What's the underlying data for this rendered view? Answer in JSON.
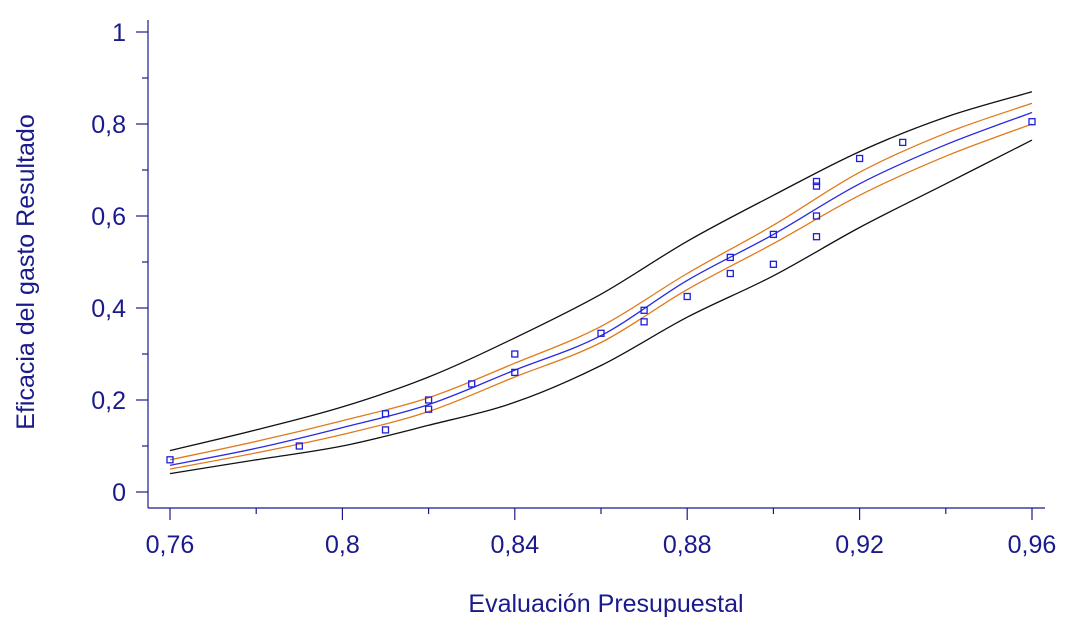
{
  "chart_data": {
    "type": "scatter",
    "title": "",
    "xlabel": "Evaluación Presupuestal",
    "ylabel": "Eficacia del gasto Resultado",
    "xlim": [
      0.76,
      0.96
    ],
    "ylim": [
      0,
      1
    ],
    "grid": false,
    "colors": {
      "axis": "#1a1a8c",
      "text": "#1a1a8c",
      "points": "#1f1fd6",
      "fit": "#2a2ae0",
      "confidence": "#e07a1a",
      "prediction": "#111111"
    },
    "x_ticks": [
      {
        "value": 0.76,
        "label": "0,76"
      },
      {
        "value": 0.8,
        "label": "0,8"
      },
      {
        "value": 0.84,
        "label": "0,84"
      },
      {
        "value": 0.88,
        "label": "0,88"
      },
      {
        "value": 0.92,
        "label": "0,92"
      },
      {
        "value": 0.96,
        "label": "0,96"
      }
    ],
    "y_ticks": [
      {
        "value": 0,
        "label": "0"
      },
      {
        "value": 0.2,
        "label": "0,2"
      },
      {
        "value": 0.4,
        "label": "0,4"
      },
      {
        "value": 0.6,
        "label": "0,6"
      },
      {
        "value": 0.8,
        "label": "0,8"
      },
      {
        "value": 1.0,
        "label": "1"
      }
    ],
    "points": [
      {
        "x": 0.76,
        "y": 0.07
      },
      {
        "x": 0.79,
        "y": 0.1
      },
      {
        "x": 0.81,
        "y": 0.17
      },
      {
        "x": 0.81,
        "y": 0.135
      },
      {
        "x": 0.82,
        "y": 0.2
      },
      {
        "x": 0.82,
        "y": 0.18
      },
      {
        "x": 0.83,
        "y": 0.235
      },
      {
        "x": 0.84,
        "y": 0.3
      },
      {
        "x": 0.84,
        "y": 0.26
      },
      {
        "x": 0.86,
        "y": 0.345
      },
      {
        "x": 0.87,
        "y": 0.395
      },
      {
        "x": 0.87,
        "y": 0.37
      },
      {
        "x": 0.88,
        "y": 0.425
      },
      {
        "x": 0.89,
        "y": 0.51
      },
      {
        "x": 0.89,
        "y": 0.475
      },
      {
        "x": 0.9,
        "y": 0.56
      },
      {
        "x": 0.9,
        "y": 0.495
      },
      {
        "x": 0.91,
        "y": 0.675
      },
      {
        "x": 0.91,
        "y": 0.665
      },
      {
        "x": 0.91,
        "y": 0.6
      },
      {
        "x": 0.91,
        "y": 0.555
      },
      {
        "x": 0.92,
        "y": 0.725
      },
      {
        "x": 0.93,
        "y": 0.76
      },
      {
        "x": 0.96,
        "y": 0.805
      }
    ],
    "curves": [
      {
        "role": "fit",
        "x": [
          0.76,
          0.78,
          0.8,
          0.82,
          0.84,
          0.86,
          0.88,
          0.9,
          0.92,
          0.94,
          0.96
        ],
        "y": [
          0.058,
          0.095,
          0.14,
          0.19,
          0.265,
          0.34,
          0.46,
          0.56,
          0.67,
          0.755,
          0.825
        ]
      },
      {
        "role": "confidence-upper",
        "x": [
          0.76,
          0.78,
          0.8,
          0.82,
          0.84,
          0.86,
          0.88,
          0.9,
          0.92,
          0.94,
          0.96
        ],
        "y": [
          0.07,
          0.11,
          0.155,
          0.205,
          0.28,
          0.36,
          0.475,
          0.58,
          0.695,
          0.78,
          0.845
        ]
      },
      {
        "role": "confidence-lower",
        "x": [
          0.76,
          0.78,
          0.8,
          0.82,
          0.84,
          0.86,
          0.88,
          0.9,
          0.92,
          0.94,
          0.96
        ],
        "y": [
          0.05,
          0.085,
          0.125,
          0.175,
          0.25,
          0.325,
          0.44,
          0.54,
          0.645,
          0.73,
          0.8
        ]
      },
      {
        "role": "prediction-upper",
        "x": [
          0.76,
          0.78,
          0.8,
          0.82,
          0.84,
          0.86,
          0.88,
          0.9,
          0.92,
          0.94,
          0.96
        ],
        "y": [
          0.09,
          0.135,
          0.185,
          0.25,
          0.335,
          0.43,
          0.545,
          0.645,
          0.74,
          0.815,
          0.87
        ]
      },
      {
        "role": "prediction-lower",
        "x": [
          0.76,
          0.78,
          0.8,
          0.82,
          0.84,
          0.86,
          0.88,
          0.9,
          0.92,
          0.94,
          0.96
        ],
        "y": [
          0.04,
          0.07,
          0.1,
          0.145,
          0.195,
          0.275,
          0.38,
          0.47,
          0.575,
          0.67,
          0.765
        ]
      }
    ]
  }
}
